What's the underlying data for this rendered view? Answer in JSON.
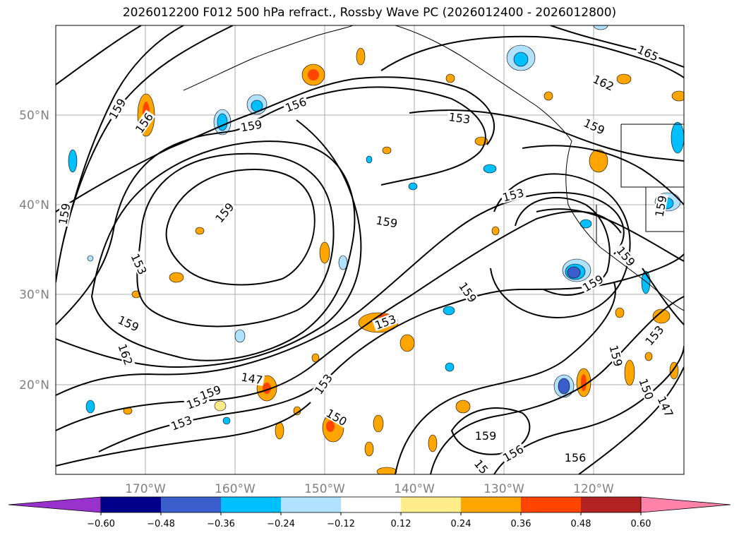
{
  "title": "2026012200 F012 500 hPa refract., Rossby Wave PC (2026012400 - 2026012800)",
  "lon_ticks": [
    "170°W",
    "160°W",
    "150°W",
    "140°W",
    "130°W",
    "120°W"
  ],
  "lat_ticks": [
    "50°N",
    "40°N",
    "30°N",
    "20°N"
  ],
  "colorbar": {
    "ticks": [
      "−0.60",
      "−0.48",
      "−0.36",
      "−0.24",
      "−0.12",
      "0.12",
      "0.24",
      "0.36",
      "0.48",
      "0.60"
    ],
    "colors": [
      "#9932cc",
      "#00008b",
      "#3a5fcd",
      "#00bfff",
      "#b0e2ff",
      "#ffffff",
      "#ffec8b",
      "#ffa500",
      "#ff4500",
      "#b22222",
      "#ff82ab"
    ]
  },
  "contour_labels": [
    "159",
    "156",
    "159",
    "156",
    "153",
    "159",
    "165",
    "162",
    "159",
    "159",
    "153",
    "159",
    "153",
    "159",
    "159",
    "162",
    "153",
    "159",
    "159",
    "159",
    "153",
    "159",
    "153",
    "150",
    "147",
    "159",
    "156",
    "156",
    "15",
    "159",
    "150",
    "147",
    "153",
    "159"
  ]
}
